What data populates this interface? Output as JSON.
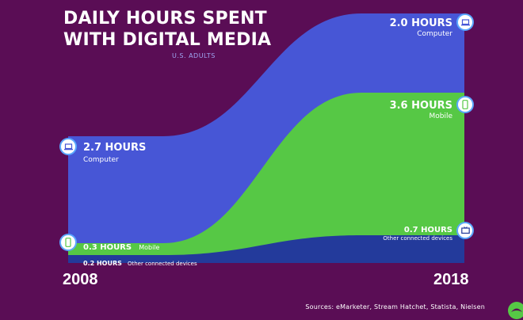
{
  "header": {
    "title_line1": "DAILY HOURS SPENT",
    "title_line2": "WITH DIGITAL MEDIA",
    "subtitle": "U.S. ADULTS"
  },
  "colors": {
    "background": "#5a0d55",
    "computer": "#4756d6",
    "mobile": "#56c845",
    "other": "#233a9b",
    "circle_border": "#5aa7ff"
  },
  "chart_data": {
    "type": "area",
    "x": [
      "2008",
      "2018"
    ],
    "series": [
      {
        "name": "Other connected devices",
        "values": [
          0.2,
          0.7
        ],
        "unit": "HOURS"
      },
      {
        "name": "Mobile",
        "values": [
          0.3,
          3.6
        ],
        "unit": "HOURS"
      },
      {
        "name": "Computer",
        "values": [
          2.7,
          2.0
        ],
        "unit": "HOURS"
      }
    ],
    "stacked": true
  },
  "labels": {
    "computer_2008": {
      "value": "2.7 HOURS",
      "caption": "Computer",
      "icon": "laptop-icon"
    },
    "mobile_2008": {
      "value": "0.3 HOURS",
      "caption": "Mobile",
      "icon": "smartphone-icon"
    },
    "other_2008": {
      "value": "0.2 HOURS",
      "caption": "Other connected devices"
    },
    "computer_2018": {
      "value": "2.0 HOURS",
      "caption": "Computer",
      "icon": "laptop-icon"
    },
    "mobile_2018": {
      "value": "3.6 HOURS",
      "caption": "Mobile",
      "icon": "smartphone-icon"
    },
    "other_2018": {
      "value": "0.7 HOURS",
      "caption": "Other connected devices",
      "icon": "tv-icon"
    }
  },
  "years": {
    "start": "2008",
    "end": "2018"
  },
  "footer": {
    "sources": "Sources: eMarketer, Stream Hatchet, Statista, Nielsen",
    "logo_icon": "brand-logo-icon"
  }
}
